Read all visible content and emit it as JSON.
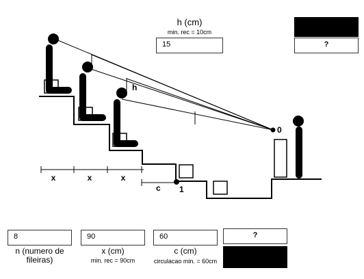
{
  "header": {
    "h_label": "h (cm)",
    "h_note": "min. rec = 10cm",
    "h_value": "15",
    "top_result": "?"
  },
  "diagram": {
    "label_x": "x",
    "label_h": "h",
    "label_c": "c",
    "label_zero": "0",
    "label_one": "1"
  },
  "inputs": {
    "n_value": "8",
    "n_label": "n (numero de fileiras)",
    "x_value": "90",
    "x_label": "x (cm)",
    "x_note": "min. rec = 90cm",
    "c_value": "60",
    "c_label": "c (cm)",
    "c_note": "circulacao min. = 60cm",
    "bottom_result": "?"
  }
}
